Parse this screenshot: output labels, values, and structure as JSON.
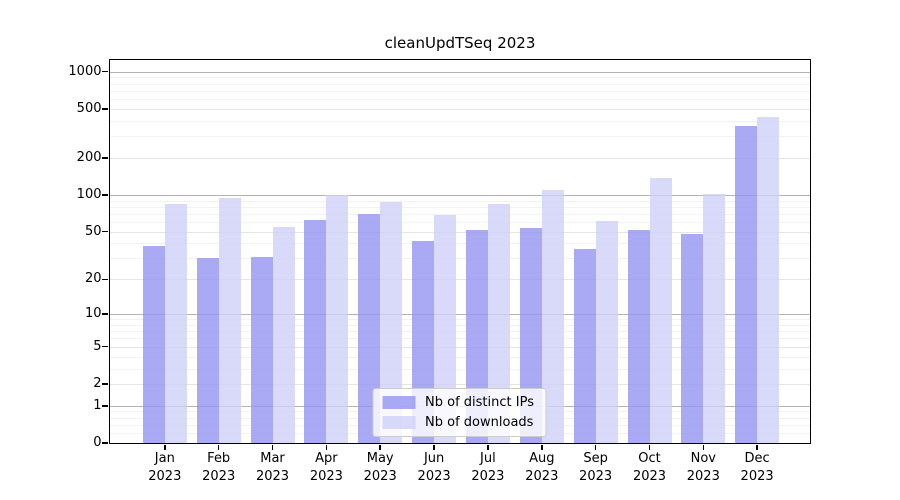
{
  "header": {
    "title": "cleanUpdTSeq 2023"
  },
  "chart_data": {
    "type": "bar",
    "title": "cleanUpdTSeq 2023",
    "y_scale": "log10(1+x)",
    "grid": true,
    "legend_position": "lower center",
    "months": [
      "Jan",
      "Feb",
      "Mar",
      "Apr",
      "May",
      "Jun",
      "Jul",
      "Aug",
      "Sep",
      "Oct",
      "Nov",
      "Dec"
    ],
    "year": "2023",
    "categories": [
      "Jan 2023",
      "Feb 2023",
      "Mar 2023",
      "Apr 2023",
      "May 2023",
      "Jun 2023",
      "Jul 2023",
      "Aug 2023",
      "Sep 2023",
      "Oct 2023",
      "Nov 2023",
      "Dec 2023"
    ],
    "series": [
      {
        "name": "Nb of distinct IPs",
        "color": "#9494f1",
        "values": [
          38,
          30,
          31,
          62,
          70,
          42,
          52,
          54,
          36,
          52,
          48,
          360
        ]
      },
      {
        "name": "Nb of downloads",
        "color": "#d0d0f8",
        "values": [
          85,
          95,
          55,
          100,
          87,
          68,
          85,
          110,
          61,
          137,
          101,
          430
        ]
      }
    ],
    "bar_alpha": 0.8,
    "y_ticks": [
      0,
      1,
      2,
      5,
      10,
      20,
      50,
      100,
      200,
      500,
      1000
    ],
    "ylim": [
      0,
      1200
    ]
  }
}
